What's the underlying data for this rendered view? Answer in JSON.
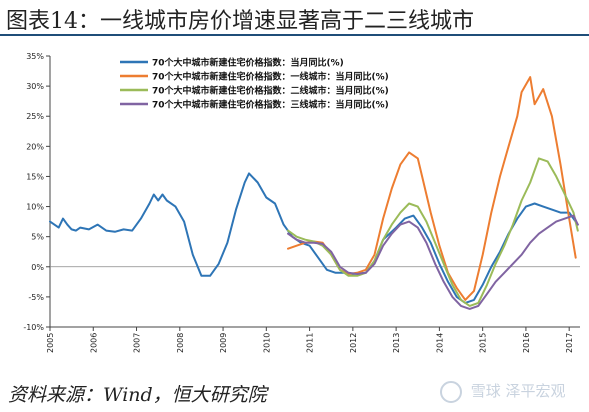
{
  "title": "图表14：一线城市房价增速显著高于二三线城市",
  "source": "资料来源：Wind，恒大研究院",
  "watermark": "雪球 泽平宏观",
  "chart_data": {
    "type": "line",
    "title": "图表14：一线城市房价增速显著高于二三线城市",
    "xlabel": "",
    "ylabel": "",
    "ylim": [
      -10,
      35
    ],
    "yticks": [
      "-10%",
      "-5%",
      "0%",
      "5%",
      "10%",
      "15%",
      "20%",
      "25%",
      "30%",
      "35%"
    ],
    "ytick_values": [
      -10,
      -5,
      0,
      5,
      10,
      15,
      20,
      25,
      30,
      35
    ],
    "xlim": [
      2005.0,
      2017.25
    ],
    "xticks": [
      "2005",
      "2006",
      "2007",
      "2008",
      "2009",
      "2010",
      "2011",
      "2012",
      "2013",
      "2014",
      "2015",
      "2016",
      "2017"
    ],
    "xtick_values": [
      2005,
      2006,
      2007,
      2008,
      2009,
      2010,
      2011,
      2012,
      2013,
      2014,
      2015,
      2016,
      2017
    ],
    "grid": false,
    "legend_position": "top-left",
    "series": [
      {
        "name": "70个大中城市新建住宅价格指数：当月同比(%)",
        "color": "#2e75b6",
        "x": [
          2005.0,
          2005.2,
          2005.3,
          2005.4,
          2005.5,
          2005.6,
          2005.7,
          2005.9,
          2006.1,
          2006.3,
          2006.5,
          2006.7,
          2006.9,
          2007.1,
          2007.3,
          2007.4,
          2007.5,
          2007.6,
          2007.7,
          2007.9,
          2008.1,
          2008.3,
          2008.5,
          2008.7,
          2008.9,
          2009.1,
          2009.3,
          2009.5,
          2009.6,
          2009.8,
          2010.0,
          2010.2,
          2010.4,
          2010.6,
          2010.8,
          2011.0,
          2011.2,
          2011.4,
          2011.6,
          2011.8,
          2012.0,
          2012.3,
          2012.5,
          2012.7,
          2013.0,
          2013.2,
          2013.4,
          2013.6,
          2013.8,
          2014.0,
          2014.2,
          2014.4,
          2014.6,
          2014.8,
          2015.0,
          2015.2,
          2015.4,
          2015.6,
          2015.8,
          2016.0,
          2016.2,
          2016.4,
          2016.6,
          2016.8,
          2017.0,
          2017.2
        ],
        "values": [
          7.5,
          6.5,
          8.0,
          7.0,
          6.2,
          6.0,
          6.5,
          6.2,
          7.0,
          6.0,
          5.8,
          6.2,
          6.0,
          8.0,
          10.5,
          12.0,
          11.0,
          12.0,
          11.0,
          10.0,
          7.5,
          2.0,
          -1.5,
          -1.5,
          0.5,
          4.0,
          9.5,
          14.0,
          15.5,
          14.0,
          11.5,
          10.5,
          7.0,
          5.0,
          4.0,
          3.5,
          1.5,
          -0.5,
          -1.0,
          -1.0,
          -1.2,
          -1.0,
          1.0,
          4.5,
          6.5,
          8.0,
          8.5,
          6.5,
          4.0,
          0.5,
          -2.5,
          -5.0,
          -6.0,
          -5.5,
          -3.0,
          0.0,
          2.5,
          5.5,
          8.0,
          10.0,
          10.5,
          10.0,
          9.5,
          9.0,
          9.0,
          7.0
        ]
      },
      {
        "name": "70个大中城市新建住宅价格指数：一线城市：当月同比(%)",
        "color": "#ed7d31",
        "x": [
          2010.5,
          2010.7,
          2010.9,
          2011.1,
          2011.3,
          2011.5,
          2011.7,
          2011.9,
          2012.1,
          2012.3,
          2012.5,
          2012.7,
          2012.9,
          2013.1,
          2013.3,
          2013.5,
          2013.6,
          2013.8,
          2014.0,
          2014.2,
          2014.4,
          2014.6,
          2014.8,
          2015.0,
          2015.2,
          2015.4,
          2015.6,
          2015.8,
          2015.9,
          2016.1,
          2016.2,
          2016.4,
          2016.6,
          2016.8,
          2017.0,
          2017.15
        ],
        "values": [
          3.0,
          3.5,
          4.0,
          4.2,
          4.0,
          2.0,
          -0.5,
          -1.2,
          -1.0,
          -0.5,
          2.0,
          8.0,
          13.0,
          17.0,
          19.0,
          18.0,
          15.0,
          9.0,
          3.5,
          -1.0,
          -3.5,
          -5.5,
          -4.0,
          2.0,
          9.0,
          15.0,
          20.0,
          25.0,
          29.0,
          31.5,
          27.0,
          29.5,
          25.0,
          17.0,
          8.0,
          1.5
        ]
      },
      {
        "name": "70个大中城市新建住宅价格指数：二线城市：当月同比(%)",
        "color": "#9bbb59",
        "x": [
          2010.5,
          2010.7,
          2010.9,
          2011.1,
          2011.3,
          2011.5,
          2011.7,
          2011.9,
          2012.1,
          2012.3,
          2012.5,
          2012.7,
          2012.9,
          2013.1,
          2013.3,
          2013.5,
          2013.7,
          2013.9,
          2014.1,
          2014.3,
          2014.5,
          2014.7,
          2014.9,
          2015.1,
          2015.3,
          2015.5,
          2015.7,
          2015.9,
          2016.1,
          2016.3,
          2016.5,
          2016.7,
          2016.9,
          2017.1,
          2017.2
        ],
        "values": [
          6.0,
          5.0,
          4.5,
          4.2,
          3.5,
          2.0,
          -0.5,
          -1.5,
          -1.5,
          -1.0,
          1.0,
          4.5,
          7.0,
          9.0,
          10.5,
          10.0,
          7.5,
          4.0,
          0.5,
          -3.0,
          -5.5,
          -6.5,
          -6.0,
          -3.0,
          0.5,
          3.5,
          7.0,
          11.0,
          14.0,
          18.0,
          17.5,
          15.0,
          12.0,
          9.0,
          6.0
        ]
      },
      {
        "name": "70个大中城市新建住宅价格指数：三线城市：当月同比(%)",
        "color": "#8064a2",
        "x": [
          2010.5,
          2010.7,
          2010.9,
          2011.1,
          2011.3,
          2011.5,
          2011.7,
          2011.9,
          2012.1,
          2012.3,
          2012.5,
          2012.7,
          2012.9,
          2013.1,
          2013.3,
          2013.5,
          2013.7,
          2013.9,
          2014.1,
          2014.3,
          2014.5,
          2014.7,
          2014.9,
          2015.1,
          2015.3,
          2015.5,
          2015.7,
          2015.9,
          2016.1,
          2016.3,
          2016.5,
          2016.7,
          2016.9,
          2017.1,
          2017.2
        ],
        "values": [
          5.5,
          4.5,
          4.0,
          4.0,
          3.8,
          2.5,
          0.0,
          -1.0,
          -1.2,
          -1.0,
          0.5,
          3.5,
          5.5,
          7.0,
          7.5,
          6.5,
          4.0,
          0.5,
          -2.5,
          -5.0,
          -6.5,
          -7.0,
          -6.5,
          -4.5,
          -2.5,
          -1.0,
          0.5,
          2.0,
          4.0,
          5.5,
          6.5,
          7.5,
          8.0,
          8.5,
          7.0
        ]
      }
    ]
  }
}
